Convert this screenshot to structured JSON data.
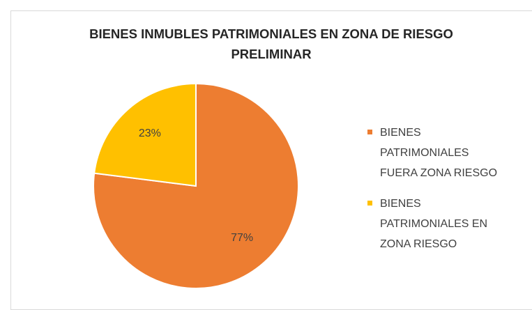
{
  "chart_data": {
    "type": "pie",
    "title": "BIENES INMUBLES PATRIMONIALES EN ZONA DE RIESGO PRELIMINAR",
    "categories": [
      "BIENES PATRIMONIALES FUERA ZONA RIESGO",
      "BIENES PATRIMONIALES EN ZONA RIESGO"
    ],
    "values": [
      77,
      23
    ],
    "value_labels": [
      "77%",
      "23%"
    ],
    "colors": [
      "#ED7D31",
      "#FFC000"
    ],
    "legend": "right"
  }
}
